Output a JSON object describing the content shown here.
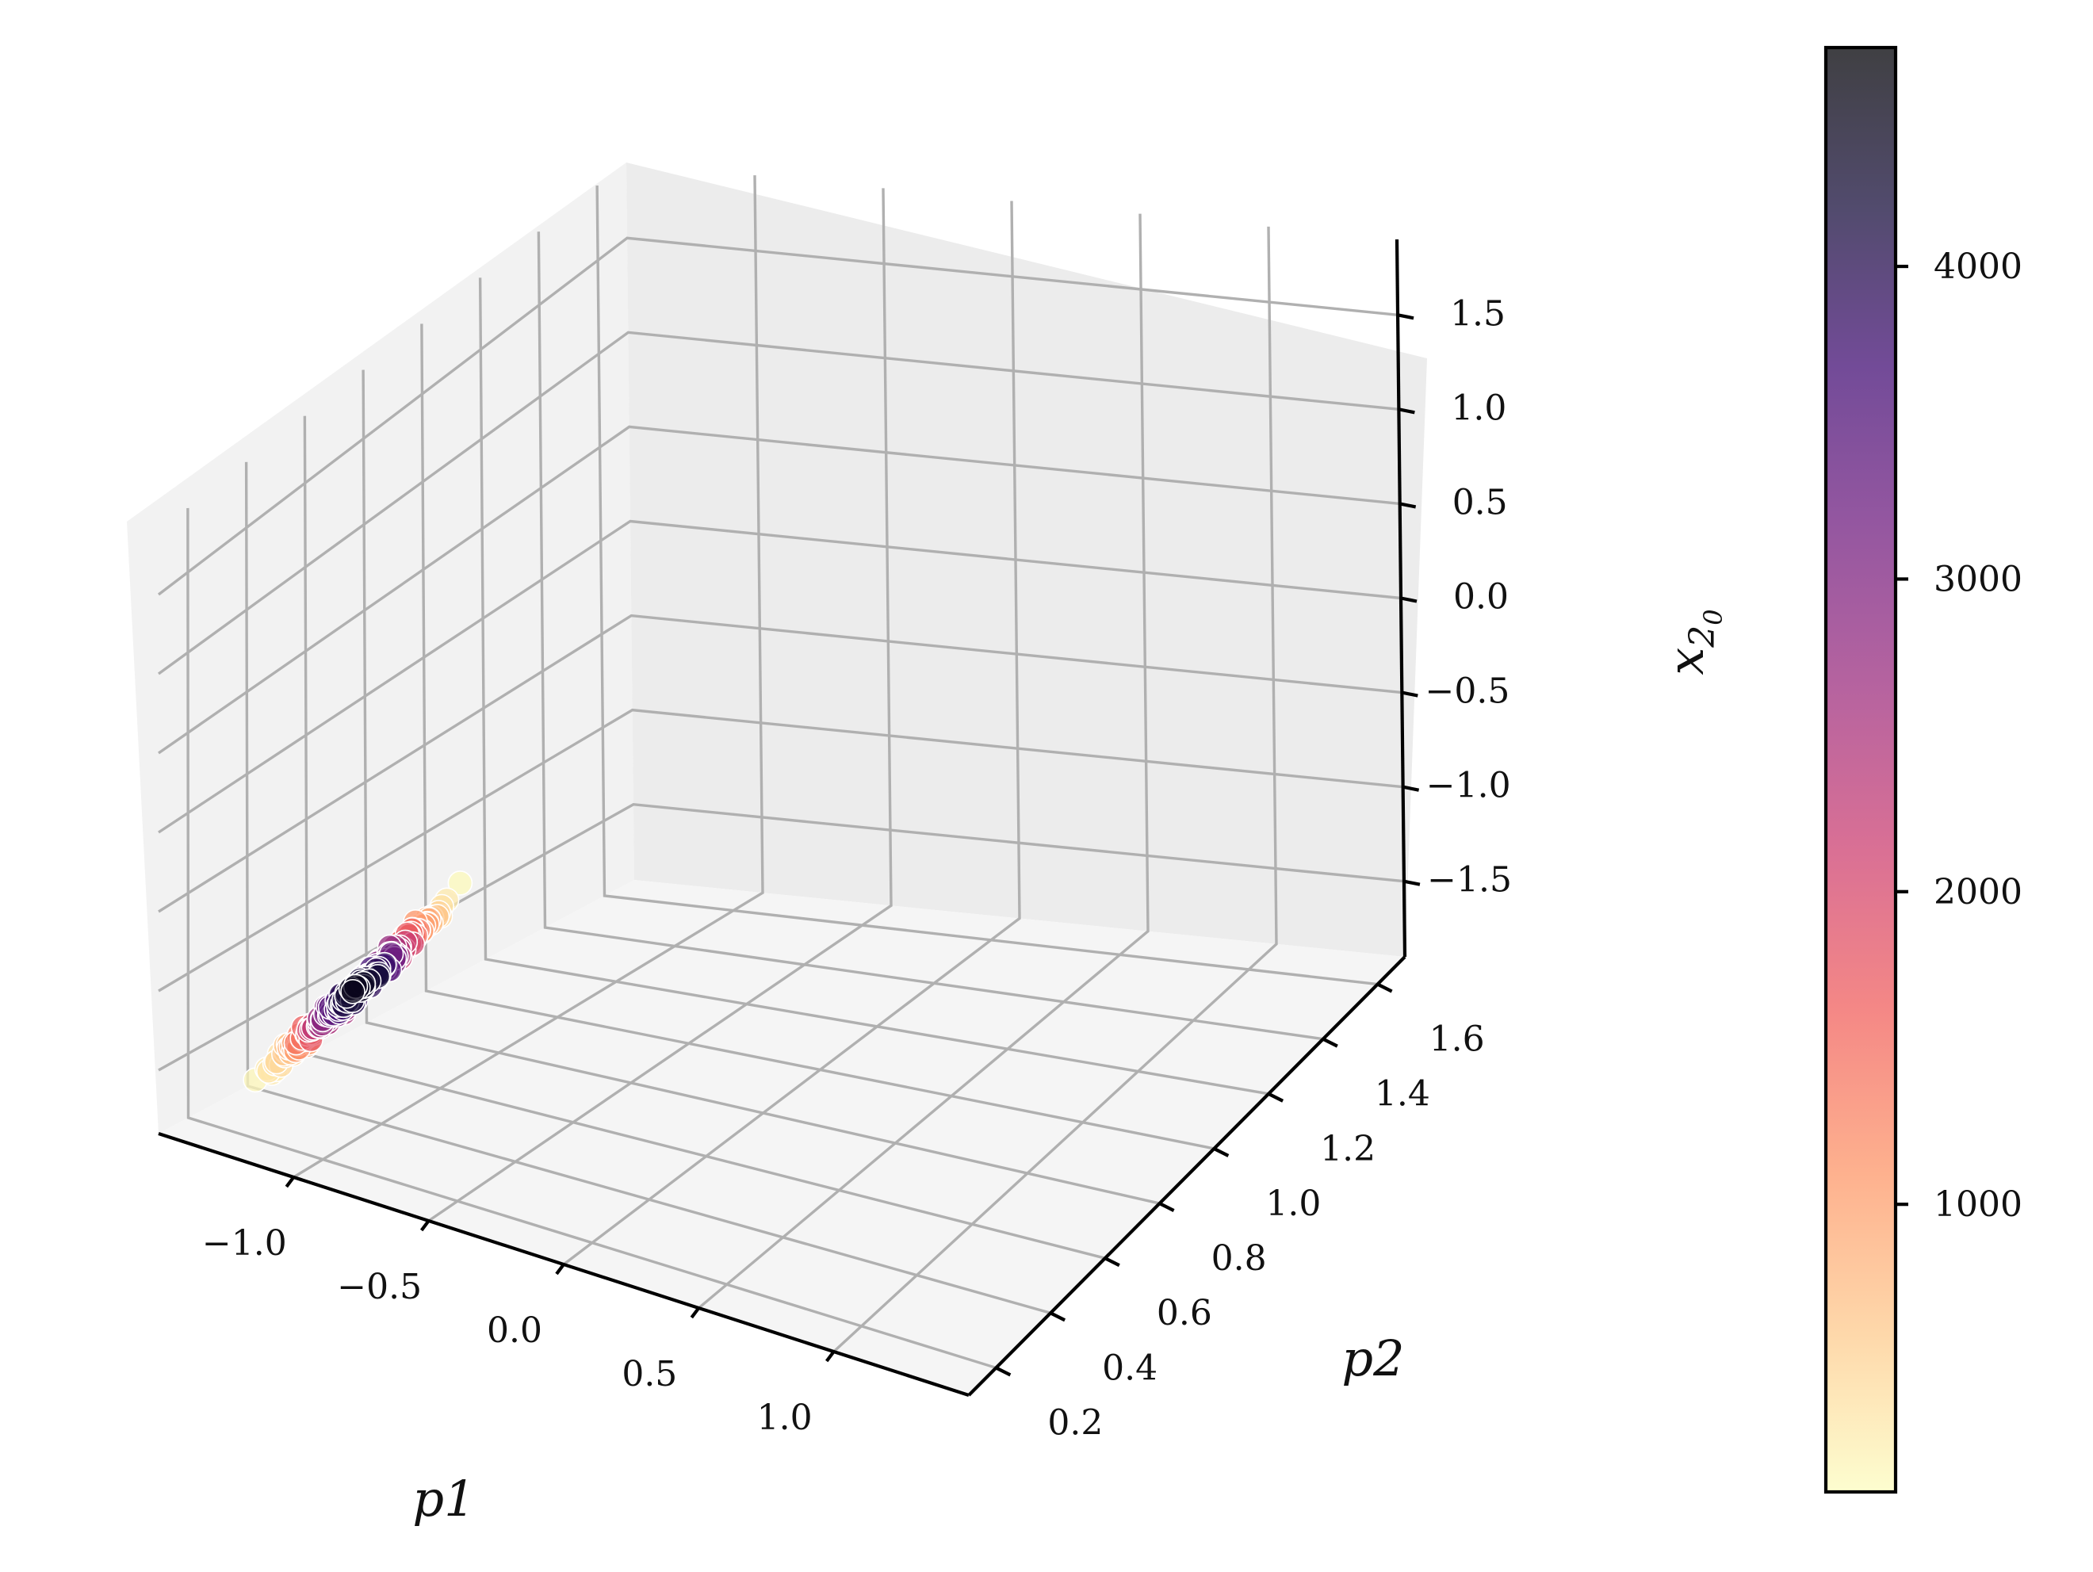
{
  "chart_data": {
    "type": "scatter",
    "projection": "3d",
    "x_axis": {
      "label": "p1",
      "range": [
        -1.5,
        1.5
      ],
      "ticks": [
        -1.0,
        -0.5,
        0.0,
        0.5,
        1.0
      ],
      "tick_labels": [
        "−1.0",
        "−0.5",
        "0.0",
        "0.5",
        "1.0"
      ]
    },
    "y_axis": {
      "label": "p2",
      "range": [
        0.1,
        1.7
      ],
      "ticks": [
        0.2,
        0.4,
        0.6,
        0.8,
        1.0,
        1.2,
        1.4,
        1.6
      ],
      "tick_labels": [
        "0.2",
        "0.4",
        "0.6",
        "0.8",
        "1.0",
        "1.2",
        "1.4",
        "1.6"
      ]
    },
    "z_axis": {
      "label_base": "x",
      "label_sub": "2",
      "label_subsub": "0",
      "range": [
        -1.9,
        1.9
      ],
      "ticks": [
        -1.5,
        -1.0,
        -0.5,
        0.0,
        0.5,
        1.0,
        1.5
      ],
      "tick_labels": [
        "−1.5",
        "−1.0",
        "−0.5",
        "0.0",
        "0.5",
        "1.0",
        "1.5"
      ]
    },
    "grid": true,
    "colorbar": {
      "colormap": "magma_r",
      "alpha": 0.75,
      "range": [
        80,
        4700
      ],
      "ticks": [
        1000,
        2000,
        3000,
        4000
      ],
      "tick_labels": [
        "1000",
        "2000",
        "3000",
        "4000"
      ],
      "stops": [
        "#fcfdbf",
        "#feca8d",
        "#fd9668",
        "#f1605d",
        "#cd4071",
        "#9e2f7f",
        "#721f81",
        "#440f76",
        "#180f3d",
        "#000004"
      ]
    },
    "points_trend": {
      "x_range": [
        -1.27,
        -0.79
      ],
      "y_range": [
        0.15,
        0.55
      ],
      "z_range": [
        -1.6,
        -0.45
      ],
      "color_center": 4500,
      "color_edge": 80,
      "count": 520
    }
  }
}
